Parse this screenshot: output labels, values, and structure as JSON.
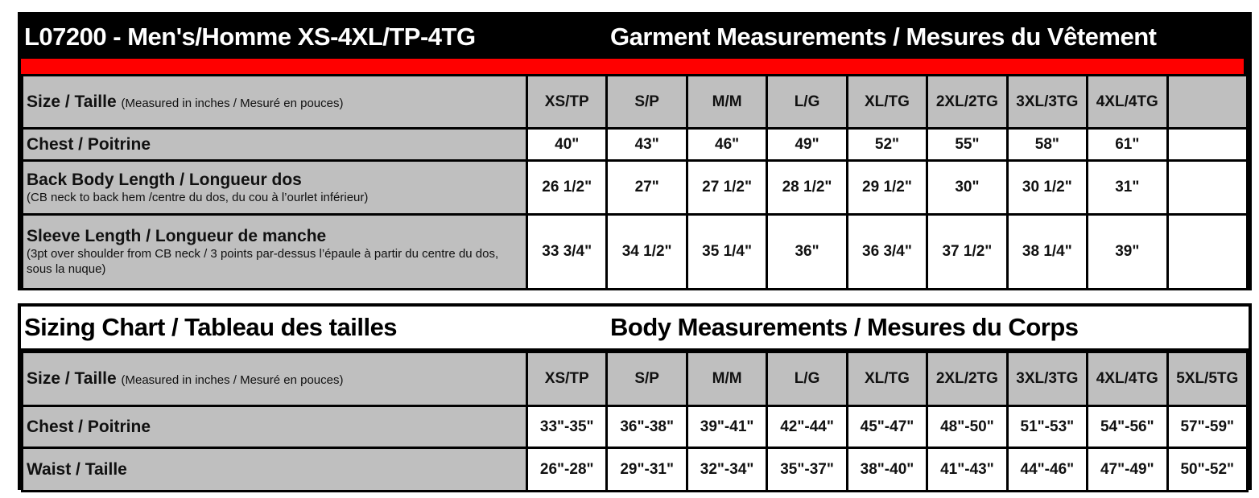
{
  "garment": {
    "title": "L07200 - Men's/Homme XS-4XL/TP-4TG",
    "subtitle": "Garment Measurements / Mesures du Vêtement",
    "accent_color": "#ff0000",
    "size_label": "Size / Taille",
    "size_note": "(Measured in inches / Mesuré en pouces)",
    "sizes": [
      "XS/TP",
      "S/P",
      "M/M",
      "L/G",
      "XL/TG",
      "2XL/2TG",
      "3XL/3TG",
      "4XL/4TG",
      ""
    ],
    "rows": [
      {
        "label": "Chest / Poitrine",
        "note": "",
        "values": [
          "40\"",
          "43\"",
          "46\"",
          "49\"",
          "52\"",
          "55\"",
          "58\"",
          "61\"",
          ""
        ]
      },
      {
        "label": "Back Body Length / Longueur dos",
        "note": "(CB neck to back hem /centre du dos, du cou à l’ourlet inférieur)",
        "values": [
          "26 1/2\"",
          "27\"",
          "27 1/2\"",
          "28 1/2\"",
          "29 1/2\"",
          "30\"",
          "30 1/2\"",
          "31\"",
          ""
        ]
      },
      {
        "label": "Sleeve Length / Longueur de manche",
        "note": "(3pt over shoulder from CB neck / 3 points par-dessus l’épaule à partir du centre du dos, sous la nuque)",
        "values": [
          "33 3/4\"",
          "34 1/2\"",
          "35 1/4\"",
          "36\"",
          "36 3/4\"",
          "37 1/2\"",
          "38 1/4\"",
          "39\"",
          ""
        ]
      }
    ]
  },
  "body": {
    "title": "Sizing Chart / Tableau des tailles",
    "subtitle": "Body Measurements / Mesures du Corps",
    "size_label": "Size / Taille",
    "size_note": "(Measured in inches / Mesuré en pouces)",
    "sizes": [
      "XS/TP",
      "S/P",
      "M/M",
      "L/G",
      "XL/TG",
      "2XL/2TG",
      "3XL/3TG",
      "4XL/4TG",
      "5XL/5TG"
    ],
    "rows": [
      {
        "label": "Chest / Poitrine",
        "note": "",
        "values": [
          "33\"-35\"",
          "36\"-38\"",
          "39\"-41\"",
          "42\"-44\"",
          "45\"-47\"",
          "48\"-50\"",
          "51\"-53\"",
          "54\"-56\"",
          "57\"-59\""
        ]
      },
      {
        "label": "Waist / Taille",
        "note": "",
        "values": [
          "26\"-28\"",
          "29\"-31\"",
          "32\"-34\"",
          "35\"-37\"",
          "38\"-40\"",
          "41\"-43\"",
          "44\"-46\"",
          "47\"-49\"",
          "50\"-52\""
        ]
      }
    ]
  }
}
